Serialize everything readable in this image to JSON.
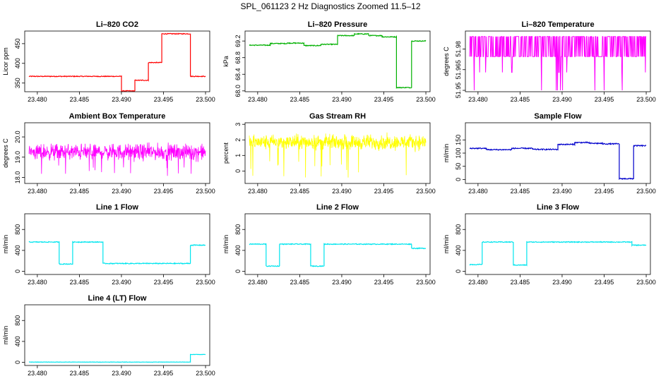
{
  "figure": {
    "title": "SPL_061123  2 Hz Diagnostics Zoomed 11.5–12"
  },
  "chart_data": [
    {
      "type": "line",
      "title": "Li–820 CO2",
      "ylabel": "Licor ppm",
      "color": "#ff0000",
      "xlim": [
        23.4785,
        23.5005
      ],
      "ylim": [
        328,
        482
      ],
      "x_ticks": [
        23.48,
        23.485,
        23.49,
        23.495,
        23.5
      ],
      "x_tick_labels": [
        "23.480",
        "23.485",
        "23.490",
        "23.495",
        "23.500"
      ],
      "y_ticks": [
        350,
        400,
        450
      ],
      "y_tick_labels": [
        "350",
        "400",
        "450"
      ],
      "noise": 1,
      "segments": [
        {
          "x": [
            23.479,
            23.49
          ],
          "y": 367
        },
        {
          "x": [
            23.49,
            23.4916
          ],
          "y": 330
        },
        {
          "x": [
            23.4916,
            23.4932
          ],
          "y": 357
        },
        {
          "x": [
            23.4932,
            23.4948
          ],
          "y": 402
        },
        {
          "x": [
            23.4948,
            23.4982
          ],
          "y": 475
        },
        {
          "x": [
            23.4982,
            23.5
          ],
          "y": 367
        }
      ]
    },
    {
      "type": "line",
      "title": "Li–820 Pressure",
      "ylabel": "kPa",
      "color": "#00b000",
      "xlim": [
        23.4785,
        23.5005
      ],
      "ylim": [
        67.98,
        69.44
      ],
      "x_ticks": [
        23.48,
        23.485,
        23.49,
        23.495,
        23.5
      ],
      "x_tick_labels": [
        "23.480",
        "23.485",
        "23.490",
        "23.495",
        "23.500"
      ],
      "y_ticks": [
        68.0,
        68.4,
        68.8,
        69.2
      ],
      "y_tick_labels": [
        "68.0",
        "68.4",
        "68.8",
        "69.2"
      ],
      "noise": 0.01,
      "segments": [
        {
          "x": [
            23.479,
            23.4815
          ],
          "y": 69.1
        },
        {
          "x": [
            23.4815,
            23.4835
          ],
          "y": 69.14
        },
        {
          "x": [
            23.4835,
            23.4855
          ],
          "y": 69.15
        },
        {
          "x": [
            23.4855,
            23.4875
          ],
          "y": 69.09
        },
        {
          "x": [
            23.4875,
            23.4895
          ],
          "y": 69.12
        },
        {
          "x": [
            23.4895,
            23.4915
          ],
          "y": 69.33
        },
        {
          "x": [
            23.4915,
            23.4932
          ],
          "y": 69.37
        },
        {
          "x": [
            23.4932,
            23.4948
          ],
          "y": 69.33
        },
        {
          "x": [
            23.4948,
            23.4965
          ],
          "y": 69.3
        },
        {
          "x": [
            23.4965,
            23.4983
          ],
          "y": 68.08
        },
        {
          "x": [
            23.4983,
            23.5
          ],
          "y": 69.2
        }
      ]
    },
    {
      "type": "line",
      "title": "Li–820 Temperature",
      "ylabel": "degrees C",
      "color": "#ff00ff",
      "xlim": [
        23.4785,
        23.5005
      ],
      "ylim": [
        51.949,
        51.993
      ],
      "x_ticks": [
        23.48,
        23.485,
        23.49,
        23.495,
        23.5
      ],
      "x_tick_labels": [
        "23.480",
        "23.485",
        "23.490",
        "23.495",
        "23.500"
      ],
      "y_ticks": [
        51.95,
        51.965,
        51.98
      ],
      "y_tick_labels": [
        "51.95",
        "51.965",
        "51.98"
      ],
      "levels": [
        51.989,
        51.9745
      ],
      "spikes": [
        51.95,
        51.963
      ],
      "x_range": [
        23.479,
        23.5
      ]
    },
    {
      "type": "line",
      "title": "Ambient Box Temperature",
      "ylabel": "degrees C",
      "color": "#ff00ff",
      "xlim": [
        23.4785,
        23.5005
      ],
      "ylim": [
        17.7,
        20.7
      ],
      "x_ticks": [
        23.48,
        23.485,
        23.49,
        23.495,
        23.5
      ],
      "x_tick_labels": [
        "23.480",
        "23.485",
        "23.490",
        "23.495",
        "23.500"
      ],
      "y_ticks": [
        18.0,
        19.0,
        20.0
      ],
      "y_tick_labels": [
        "18.0",
        "19.0",
        "20.0"
      ],
      "mean": 19.25,
      "spread": 0.35,
      "dip_to": 18.0,
      "x_range": [
        23.479,
        23.5
      ]
    },
    {
      "type": "line",
      "title": "Gas Stream RH",
      "ylabel": "percent",
      "color": "#ffff00",
      "xlim": [
        23.4785,
        23.5005
      ],
      "ylim": [
        -0.8,
        3.1
      ],
      "x_ticks": [
        23.48,
        23.485,
        23.49,
        23.495,
        23.5
      ],
      "x_tick_labels": [
        "23.480",
        "23.485",
        "23.490",
        "23.495",
        "23.500"
      ],
      "y_ticks": [
        0,
        1,
        2,
        3
      ],
      "y_tick_labels": [
        "0",
        "1",
        "2",
        "3"
      ],
      "mean": 1.85,
      "spread": 0.42,
      "dip_to": -0.5,
      "x_range": [
        23.479,
        23.5
      ]
    },
    {
      "type": "line",
      "title": "Sample Flow",
      "ylabel": "ml/min",
      "color": "#0000cc",
      "xlim": [
        23.4785,
        23.5005
      ],
      "ylim": [
        -15,
        215
      ],
      "x_ticks": [
        23.48,
        23.485,
        23.49,
        23.495,
        23.5
      ],
      "x_tick_labels": [
        "23.480",
        "23.485",
        "23.490",
        "23.495",
        "23.500"
      ],
      "y_ticks": [
        0,
        50,
        100,
        150
      ],
      "y_tick_labels": [
        "0",
        "50",
        "100",
        "150"
      ],
      "noise": 2,
      "segments": [
        {
          "x": [
            23.479,
            23.481
          ],
          "y": 118
        },
        {
          "x": [
            23.481,
            23.484
          ],
          "y": 113
        },
        {
          "x": [
            23.484,
            23.4865
          ],
          "y": 118
        },
        {
          "x": [
            23.4865,
            23.4895
          ],
          "y": 114
        },
        {
          "x": [
            23.4895,
            23.4915
          ],
          "y": 133
        },
        {
          "x": [
            23.4915,
            23.4932
          ],
          "y": 140
        },
        {
          "x": [
            23.4932,
            23.4948
          ],
          "y": 137
        },
        {
          "x": [
            23.4948,
            23.4968
          ],
          "y": 135
        },
        {
          "x": [
            23.4968,
            23.4985
          ],
          "y": 3
        },
        {
          "x": [
            23.4985,
            23.5
          ],
          "y": 128
        }
      ]
    },
    {
      "type": "line",
      "title": "Line 1 Flow",
      "ylabel": "ml/min",
      "color": "#00e5ee",
      "xlim": [
        23.4785,
        23.5005
      ],
      "ylim": [
        -60,
        1100
      ],
      "x_ticks": [
        23.48,
        23.485,
        23.49,
        23.495,
        23.5
      ],
      "x_tick_labels": [
        "23.480",
        "23.485",
        "23.490",
        "23.495",
        "23.500"
      ],
      "y_ticks": [
        0,
        400,
        800
      ],
      "y_tick_labels": [
        "0",
        "400",
        "800"
      ],
      "noise": 8,
      "segments": [
        {
          "x": [
            23.479,
            23.4826
          ],
          "y": 560
        },
        {
          "x": [
            23.4826,
            23.4842
          ],
          "y": 140
        },
        {
          "x": [
            23.4842,
            23.4878
          ],
          "y": 560
        },
        {
          "x": [
            23.4878,
            23.4982
          ],
          "y": 150
        },
        {
          "x": [
            23.4982,
            23.5
          ],
          "y": 500
        }
      ]
    },
    {
      "type": "line",
      "title": "Line 2 Flow",
      "ylabel": "ml/min",
      "color": "#00e5ee",
      "xlim": [
        23.4785,
        23.5005
      ],
      "ylim": [
        -60,
        1100
      ],
      "x_ticks": [
        23.48,
        23.485,
        23.49,
        23.495,
        23.5
      ],
      "x_tick_labels": [
        "23.480",
        "23.485",
        "23.490",
        "23.495",
        "23.500"
      ],
      "y_ticks": [
        0,
        400,
        800
      ],
      "y_tick_labels": [
        "0",
        "400",
        "800"
      ],
      "noise": 8,
      "segments": [
        {
          "x": [
            23.479,
            23.481
          ],
          "y": 520
        },
        {
          "x": [
            23.481,
            23.4826
          ],
          "y": 100
        },
        {
          "x": [
            23.4826,
            23.4863
          ],
          "y": 520
        },
        {
          "x": [
            23.4863,
            23.4879
          ],
          "y": 100
        },
        {
          "x": [
            23.4879,
            23.4983
          ],
          "y": 520
        },
        {
          "x": [
            23.4983,
            23.5
          ],
          "y": 440
        }
      ]
    },
    {
      "type": "line",
      "title": "Line 3 Flow",
      "ylabel": "ml/min",
      "color": "#00e5ee",
      "xlim": [
        23.4785,
        23.5005
      ],
      "ylim": [
        -60,
        1100
      ],
      "x_ticks": [
        23.48,
        23.485,
        23.49,
        23.495,
        23.5
      ],
      "x_tick_labels": [
        "23.480",
        "23.485",
        "23.490",
        "23.495",
        "23.500"
      ],
      "y_ticks": [
        0,
        400,
        800
      ],
      "y_tick_labels": [
        "0",
        "400",
        "800"
      ],
      "noise": 8,
      "segments": [
        {
          "x": [
            23.479,
            23.4805
          ],
          "y": 130
        },
        {
          "x": [
            23.4805,
            23.4842
          ],
          "y": 560
        },
        {
          "x": [
            23.4842,
            23.4858
          ],
          "y": 120
        },
        {
          "x": [
            23.4858,
            23.4983
          ],
          "y": 560
        },
        {
          "x": [
            23.4983,
            23.5
          ],
          "y": 500
        }
      ]
    },
    {
      "type": "line",
      "title": "Line 4 (LT) Flow",
      "ylabel": "ml/min",
      "color": "#00e5ee",
      "xlim": [
        23.4785,
        23.5005
      ],
      "ylim": [
        -60,
        1100
      ],
      "x_ticks": [
        23.48,
        23.485,
        23.49,
        23.495,
        23.5
      ],
      "x_tick_labels": [
        "23.480",
        "23.485",
        "23.490",
        "23.495",
        "23.500"
      ],
      "y_ticks": [
        0,
        400,
        800
      ],
      "y_tick_labels": [
        "0",
        "400",
        "800"
      ],
      "noise": 3,
      "segments": [
        {
          "x": [
            23.479,
            23.4982
          ],
          "y": 5
        },
        {
          "x": [
            23.4982,
            23.5
          ],
          "y": 150
        }
      ]
    }
  ]
}
